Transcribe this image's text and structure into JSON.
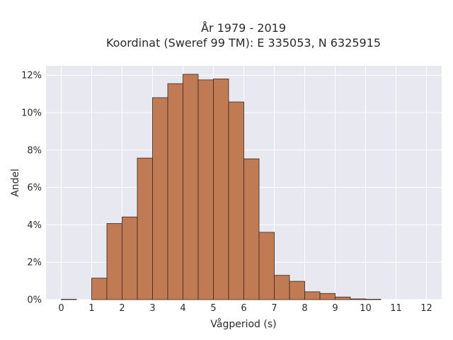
{
  "chart_data": {
    "type": "bar",
    "title": "År 1979 - 2019",
    "subtitle": "Koordinat (Sweref 99 TM): E 335053, N 6325915",
    "xlabel": "Vågperiod (s)",
    "ylabel": "Andel",
    "xlim": [
      -0.5,
      12.5
    ],
    "ylim": [
      0,
      12.5
    ],
    "x_ticks": [
      "0",
      "1",
      "2",
      "3",
      "4",
      "5",
      "6",
      "7",
      "8",
      "9",
      "10",
      "11",
      "12"
    ],
    "y_ticks": [
      "0%",
      "2%",
      "4%",
      "6%",
      "8%",
      "10%",
      "12%"
    ],
    "y_unit": "%",
    "bin_width": 0.5,
    "bins": [
      {
        "x0": 0.0,
        "value": 0.02
      },
      {
        "x0": 0.5,
        "value": 0.0
      },
      {
        "x0": 1.0,
        "value": 1.15
      },
      {
        "x0": 1.5,
        "value": 4.07
      },
      {
        "x0": 2.0,
        "value": 4.42
      },
      {
        "x0": 2.5,
        "value": 7.57
      },
      {
        "x0": 3.0,
        "value": 10.8
      },
      {
        "x0": 3.5,
        "value": 11.55
      },
      {
        "x0": 4.0,
        "value": 12.05
      },
      {
        "x0": 4.5,
        "value": 11.75
      },
      {
        "x0": 5.0,
        "value": 11.8
      },
      {
        "x0": 5.5,
        "value": 10.57
      },
      {
        "x0": 6.0,
        "value": 7.53
      },
      {
        "x0": 6.5,
        "value": 3.6
      },
      {
        "x0": 7.0,
        "value": 1.3
      },
      {
        "x0": 7.5,
        "value": 0.98
      },
      {
        "x0": 8.0,
        "value": 0.42
      },
      {
        "x0": 8.5,
        "value": 0.33
      },
      {
        "x0": 9.0,
        "value": 0.14
      },
      {
        "x0": 9.5,
        "value": 0.04
      },
      {
        "x0": 10.0,
        "value": 0.02
      }
    ],
    "grid": true,
    "legend": "none",
    "bar_color": "#c07b54",
    "bar_edge_color": "#3a2a20",
    "plot_background": "#e8e8f0",
    "grid_color": "#ffffff"
  }
}
